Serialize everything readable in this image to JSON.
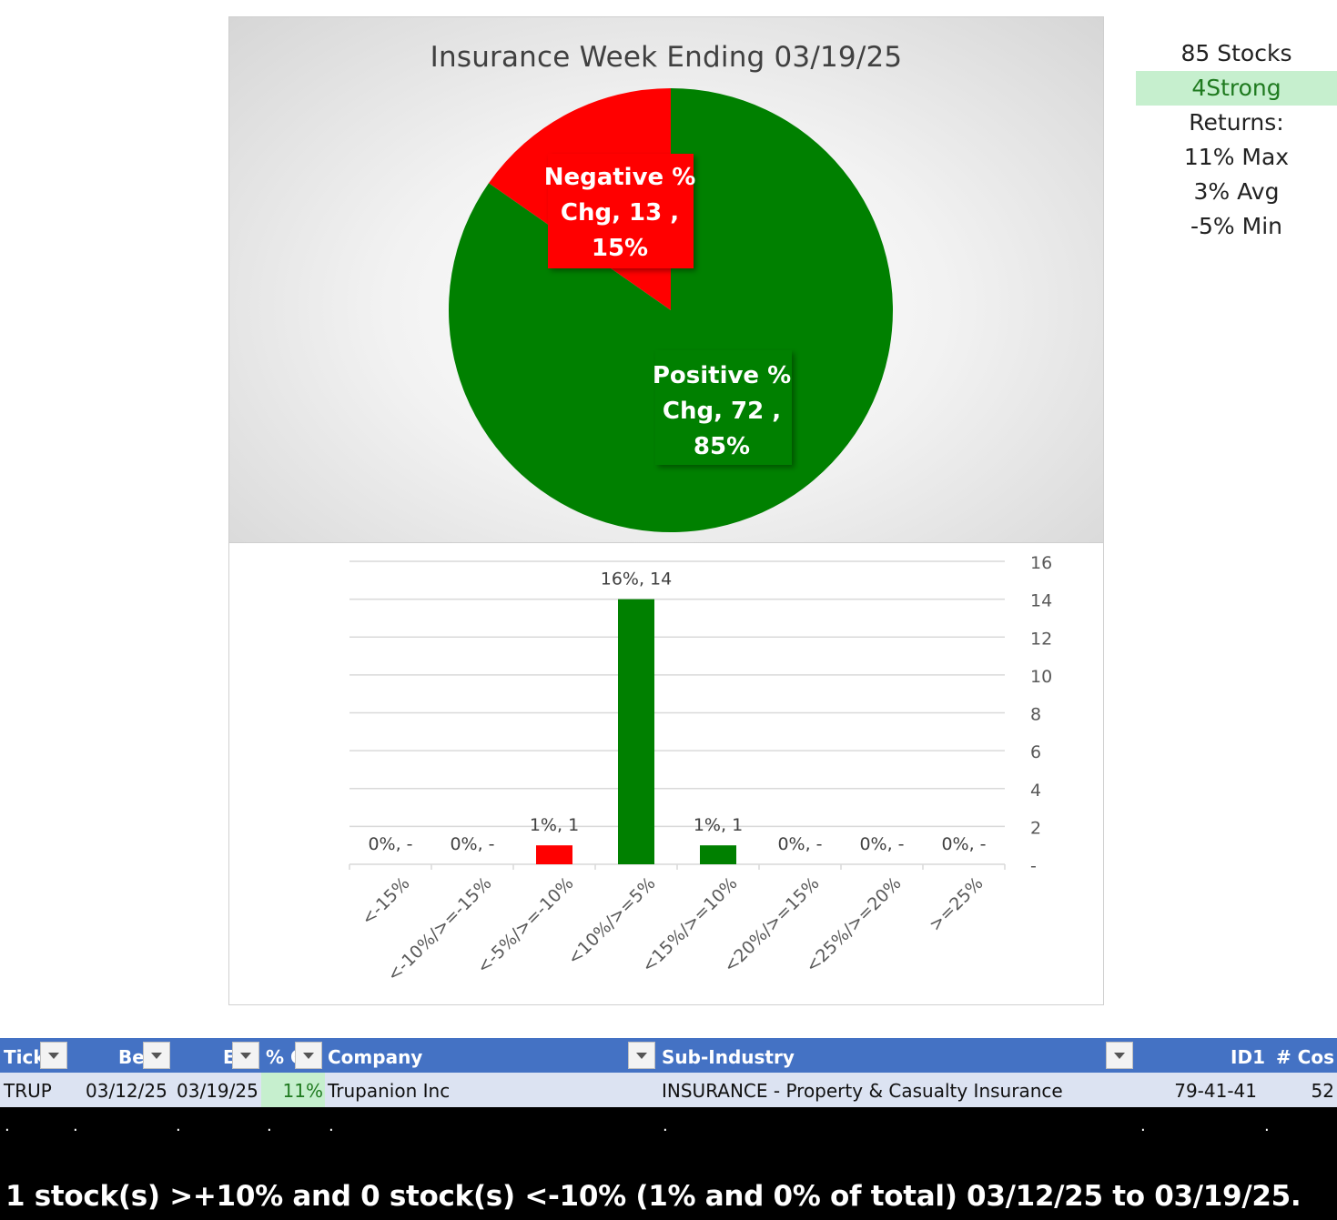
{
  "chart_data": [
    {
      "type": "pie",
      "title": "Insurance Week Ending 03/19/25",
      "slices": [
        {
          "label": "Negative % Chg",
          "value": 13,
          "percent": "15%",
          "color": "#ff0000"
        },
        {
          "label": "Positive % Chg",
          "value": 72,
          "percent": "85%",
          "color": "#008000"
        }
      ],
      "data_labels": [
        {
          "lines": [
            "Negative %",
            "Chg,  13 ,",
            "15%"
          ]
        },
        {
          "lines": [
            "Positive %",
            "Chg,  72 ,",
            "85%"
          ]
        }
      ]
    },
    {
      "type": "bar",
      "categories": [
        "<-15%",
        "<-10%/>=-15%",
        "<-5%/>=-10%",
        "<10%/>=5%",
        "<15%/>=10%",
        "<20%/>=15%",
        "<25%/>=20%",
        ">=25%"
      ],
      "values": [
        0,
        0,
        1,
        14,
        1,
        0,
        0,
        0
      ],
      "colors": [
        "#ff0000",
        "#ff0000",
        "#ff0000",
        "#008000",
        "#008000",
        "#008000",
        "#008000",
        "#008000"
      ],
      "data_labels": [
        "0%,  -",
        "0%,  -",
        "1%,  1",
        "16%,  14",
        "1%,  1",
        "0%,  -",
        "0%,  -",
        "0%,  -"
      ],
      "ylim": [
        0,
        16
      ],
      "y_ticks": [
        "-",
        "2",
        "4",
        "6",
        "8",
        "10",
        "12",
        "14",
        "16"
      ],
      "y_axis_side": "right",
      "grid": true
    }
  ],
  "stats": {
    "stocks": "85 Stocks",
    "rating": "4Strong",
    "returns_label": "Returns:",
    "max": "11% Max",
    "avg": "3% Avg",
    "min": "-5% Min"
  },
  "table": {
    "headers": [
      "Tick",
      "Be",
      "E",
      "% C",
      "Company",
      "Sub-Industry",
      "ID1",
      "# Cos"
    ],
    "rows": [
      {
        "ticker": "TRUP",
        "begin": "03/12/25",
        "end": "03/19/25",
        "pct_change": "11%",
        "company": "Trupanion Inc",
        "sub_industry": "INSURANCE - Property & Casualty Insurance",
        "id1": "79-41-41",
        "num_cos": "52"
      }
    ]
  },
  "footer": {
    "summary": "1 stock(s) >+10% and 0 stock(s) <-10% (1% and 0% of total) 03/12/25 to 03/19/25."
  },
  "colors": {
    "header_blue": "#4472c4",
    "row_blue": "#dce3f2",
    "positive": "#008000",
    "negative": "#ff0000",
    "highlight_green": "#c6efce"
  }
}
